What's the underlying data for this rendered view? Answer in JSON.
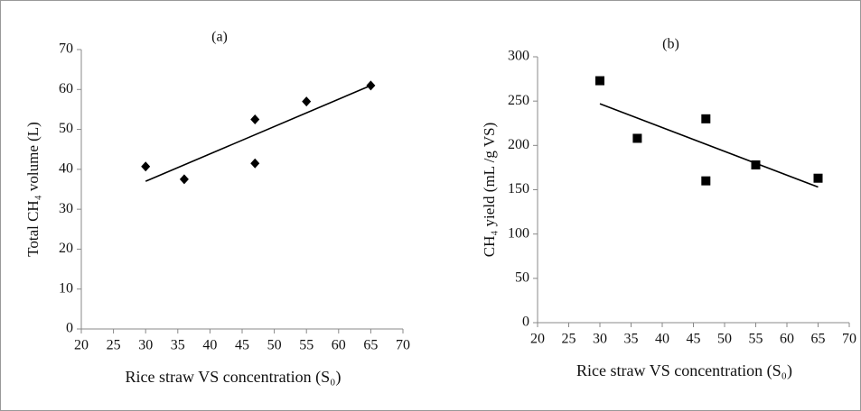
{
  "chart_data": [
    {
      "type": "scatter",
      "title": "(a)",
      "x_label": "Rice straw VS concentration (S₀)",
      "y_label": "Total CH₄ volume (L)",
      "x": [
        30,
        36,
        47,
        47,
        55,
        65
      ],
      "values": [
        40.7,
        37.5,
        52.5,
        41.5,
        57,
        61
      ],
      "marker": "diamond",
      "color": "#000000",
      "trendline": {
        "x": [
          30,
          65
        ],
        "values": [
          37,
          61
        ]
      },
      "xlim": [
        20,
        70
      ],
      "xticks": [
        20,
        25,
        30,
        35,
        40,
        45,
        50,
        55,
        60,
        65,
        70
      ],
      "ylim": [
        0,
        70
      ],
      "yticks": [
        0,
        10,
        20,
        30,
        40,
        50,
        60,
        70
      ]
    },
    {
      "type": "scatter",
      "title": "(b)",
      "x_label": "Rice straw VS concentration (S₀)",
      "y_label": "CH₄ yield (mL /g VS)",
      "x": [
        30,
        36,
        47,
        47,
        55,
        65
      ],
      "values": [
        273,
        208,
        230,
        160,
        178,
        163
      ],
      "marker": "square",
      "color": "#000000",
      "trendline": {
        "x": [
          30,
          65
        ],
        "values": [
          247,
          153
        ]
      },
      "xlim": [
        20,
        70
      ],
      "xticks": [
        20,
        25,
        30,
        35,
        40,
        45,
        50,
        55,
        60,
        65,
        70
      ],
      "ylim": [
        0,
        300
      ],
      "yticks": [
        0,
        50,
        100,
        150,
        200,
        250,
        300
      ]
    }
  ]
}
